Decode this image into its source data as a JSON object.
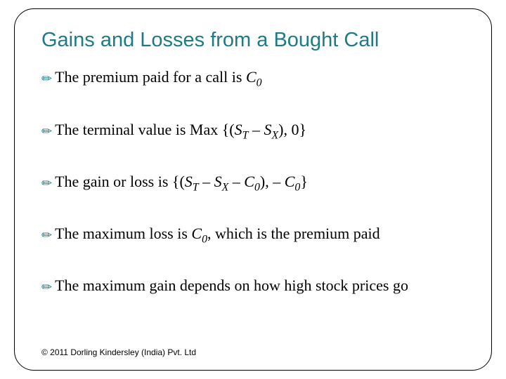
{
  "slide": {
    "title": "Gains and Losses from a Bought Call",
    "title_color": "#1e7b82",
    "title_fontsize": 29,
    "body_font": "Times New Roman",
    "body_fontsize": 22,
    "bullet_icon_color": "#1e7b82",
    "border_color": "#000000",
    "border_radius": 28,
    "background_color": "#ffffff",
    "bullets": [
      {
        "prefix": "The premium paid for a call is ",
        "math": "C0_sub"
      },
      {
        "prefix": "The terminal value is Max {(",
        "math": "ST_minus_SX_comma0"
      },
      {
        "prefix": "The gain or loss is {(",
        "math": "ST_SX_C0_minus_C0"
      },
      {
        "prefix": "The maximum loss is ",
        "math": "C0_premium"
      },
      {
        "prefix": "The maximum gain depends on how high stock prices go",
        "math": "none"
      }
    ],
    "copyright": "© 2011 Dorling Kindersley (India) Pvt. Ltd"
  }
}
